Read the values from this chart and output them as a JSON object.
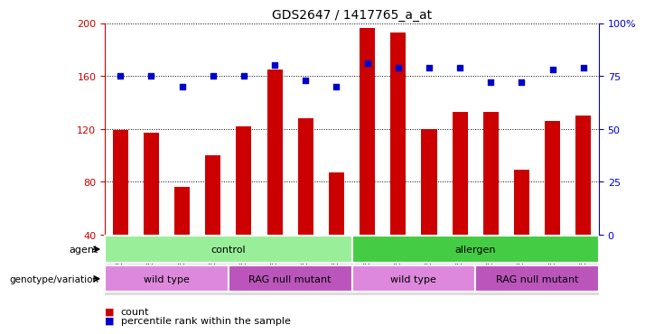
{
  "title": "GDS2647 / 1417765_a_at",
  "samples": [
    "GSM158136",
    "GSM158137",
    "GSM158144",
    "GSM158145",
    "GSM158132",
    "GSM158133",
    "GSM158140",
    "GSM158141",
    "GSM158138",
    "GSM158139",
    "GSM158146",
    "GSM158147",
    "GSM158134",
    "GSM158135",
    "GSM158142",
    "GSM158143"
  ],
  "counts": [
    119,
    117,
    76,
    100,
    122,
    165,
    128,
    87,
    196,
    193,
    120,
    133,
    133,
    89,
    126,
    130
  ],
  "percentiles": [
    75,
    75,
    70,
    75,
    75,
    80,
    73,
    70,
    81,
    79,
    79,
    79,
    72,
    72,
    78,
    79
  ],
  "ylim_left": [
    40,
    200
  ],
  "ylim_right": [
    0,
    100
  ],
  "yticks_left": [
    40,
    80,
    120,
    160,
    200
  ],
  "yticks_right": [
    0,
    25,
    50,
    75,
    100
  ],
  "bar_color": "#cc0000",
  "dot_color": "#0000cc",
  "bg_color": "#ffffff",
  "grid_color": "#000000",
  "agent_labels": [
    {
      "text": "control",
      "start": 0,
      "end": 8,
      "color": "#99ee99"
    },
    {
      "text": "allergen",
      "start": 8,
      "end": 16,
      "color": "#44cc44"
    }
  ],
  "genotype_labels": [
    {
      "text": "wild type",
      "start": 0,
      "end": 4,
      "color": "#dd88dd"
    },
    {
      "text": "RAG null mutant",
      "start": 4,
      "end": 8,
      "color": "#bb55bb"
    },
    {
      "text": "wild type",
      "start": 8,
      "end": 12,
      "color": "#dd88dd"
    },
    {
      "text": "RAG null mutant",
      "start": 12,
      "end": 16,
      "color": "#bb55bb"
    }
  ],
  "legend_count_color": "#cc0000",
  "legend_pct_color": "#0000cc",
  "row_label_agent": "agent",
  "row_label_genotype": "genotype/variation",
  "xlim": [
    -0.5,
    15.5
  ]
}
